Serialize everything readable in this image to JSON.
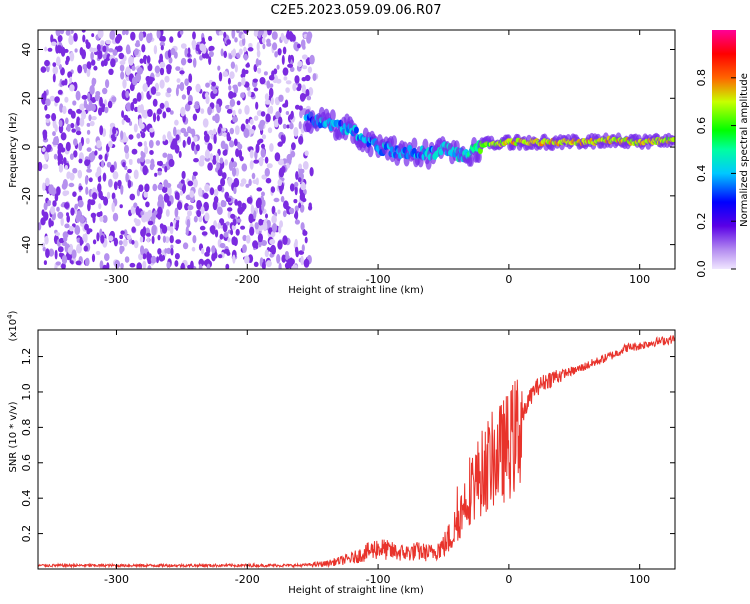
{
  "title": "C2E5.2023.059.09.06.R07",
  "colors": {
    "spectrogram_noise": "#7b2be0",
    "snr_line": "#e8332b",
    "axis": "#000000"
  },
  "chart_data": [
    {
      "type": "heatmap",
      "title": "C2E5.2023.059.09.06.R07",
      "xlabel": "Height of straight line (km)",
      "ylabel": "Frequency (Hz)",
      "xlim": [
        -360,
        127
      ],
      "ylim": [
        -50,
        48
      ],
      "x_ticks": [
        -300,
        -200,
        -100,
        0,
        100
      ],
      "x_tick_labels": [
        "-300",
        "-200",
        "-100",
        "0",
        "100"
      ],
      "y_ticks": [
        -40,
        -20,
        0,
        20,
        40
      ],
      "y_tick_labels": [
        "-40",
        "-20",
        "0",
        "20",
        "40"
      ],
      "colorbar": {
        "label": "Normalized spectral amplitude",
        "range": [
          0,
          1
        ],
        "ticks": [
          0.0,
          0.2,
          0.4,
          0.6,
          0.8
        ],
        "tick_labels": [
          "0.0",
          "0.2",
          "0.4",
          "0.6",
          "0.8"
        ],
        "colormap": "rainbow (violet-blue-cyan-green-yellow-red-magenta)"
      },
      "noise_region": {
        "x": [
          -360,
          -155
        ],
        "level": 0.1
      },
      "signal_track": {
        "x": [
          -155,
          -140,
          -120,
          -100,
          -80,
          -60,
          -50,
          -40,
          -30,
          -20,
          0,
          20,
          40,
          60,
          80,
          100,
          127
        ],
        "frequency": [
          12,
          10,
          7,
          0,
          -2,
          -3,
          0,
          -3,
          -3,
          1,
          2,
          2,
          2,
          2,
          3,
          2,
          3
        ],
        "amplitude": [
          0.35,
          0.4,
          0.4,
          0.4,
          0.4,
          0.4,
          0.45,
          0.45,
          0.5,
          0.7,
          0.85,
          0.85,
          0.85,
          0.85,
          0.85,
          0.85,
          0.8
        ]
      }
    },
    {
      "type": "line",
      "xlabel": "Height of straight line (km)",
      "ylabel": "SNR (10 * v/v)",
      "y_exponent_label": "(x10",
      "y_exponent": "4",
      "y_exponent_close": ")",
      "xlim": [
        -360,
        127
      ],
      "ylim": [
        0,
        13500
      ],
      "x_ticks": [
        -300,
        -200,
        -100,
        0,
        100
      ],
      "x_tick_labels": [
        "-300",
        "-200",
        "-100",
        "0",
        "100"
      ],
      "y_ticks": [
        2000,
        4000,
        6000,
        8000,
        10000,
        12000
      ],
      "y_tick_labels": [
        "0.2",
        "0.4",
        "0.6",
        "0.8",
        "1.0",
        "1.2"
      ],
      "series": [
        {
          "x": [
            -360,
            -300,
            -250,
            -200,
            -160,
            -140,
            -120,
            -110,
            -100,
            -90,
            -80,
            -70,
            -60,
            -50,
            -45,
            -40,
            -35,
            -30,
            -25,
            -20,
            -15,
            -10,
            -5,
            0,
            5,
            10,
            15,
            20,
            30,
            40,
            50,
            60,
            70,
            80,
            90,
            100,
            110,
            127
          ],
          "y": [
            200,
            200,
            200,
            200,
            200,
            300,
            600,
            900,
            1200,
            1000,
            900,
            1000,
            900,
            1300,
            1800,
            2500,
            3500,
            4500,
            5000,
            5500,
            6000,
            6300,
            6600,
            7000,
            7500,
            8500,
            9500,
            10200,
            10700,
            11000,
            11200,
            11500,
            11800,
            12100,
            12500,
            12600,
            12800,
            13000
          ]
        }
      ]
    }
  ]
}
